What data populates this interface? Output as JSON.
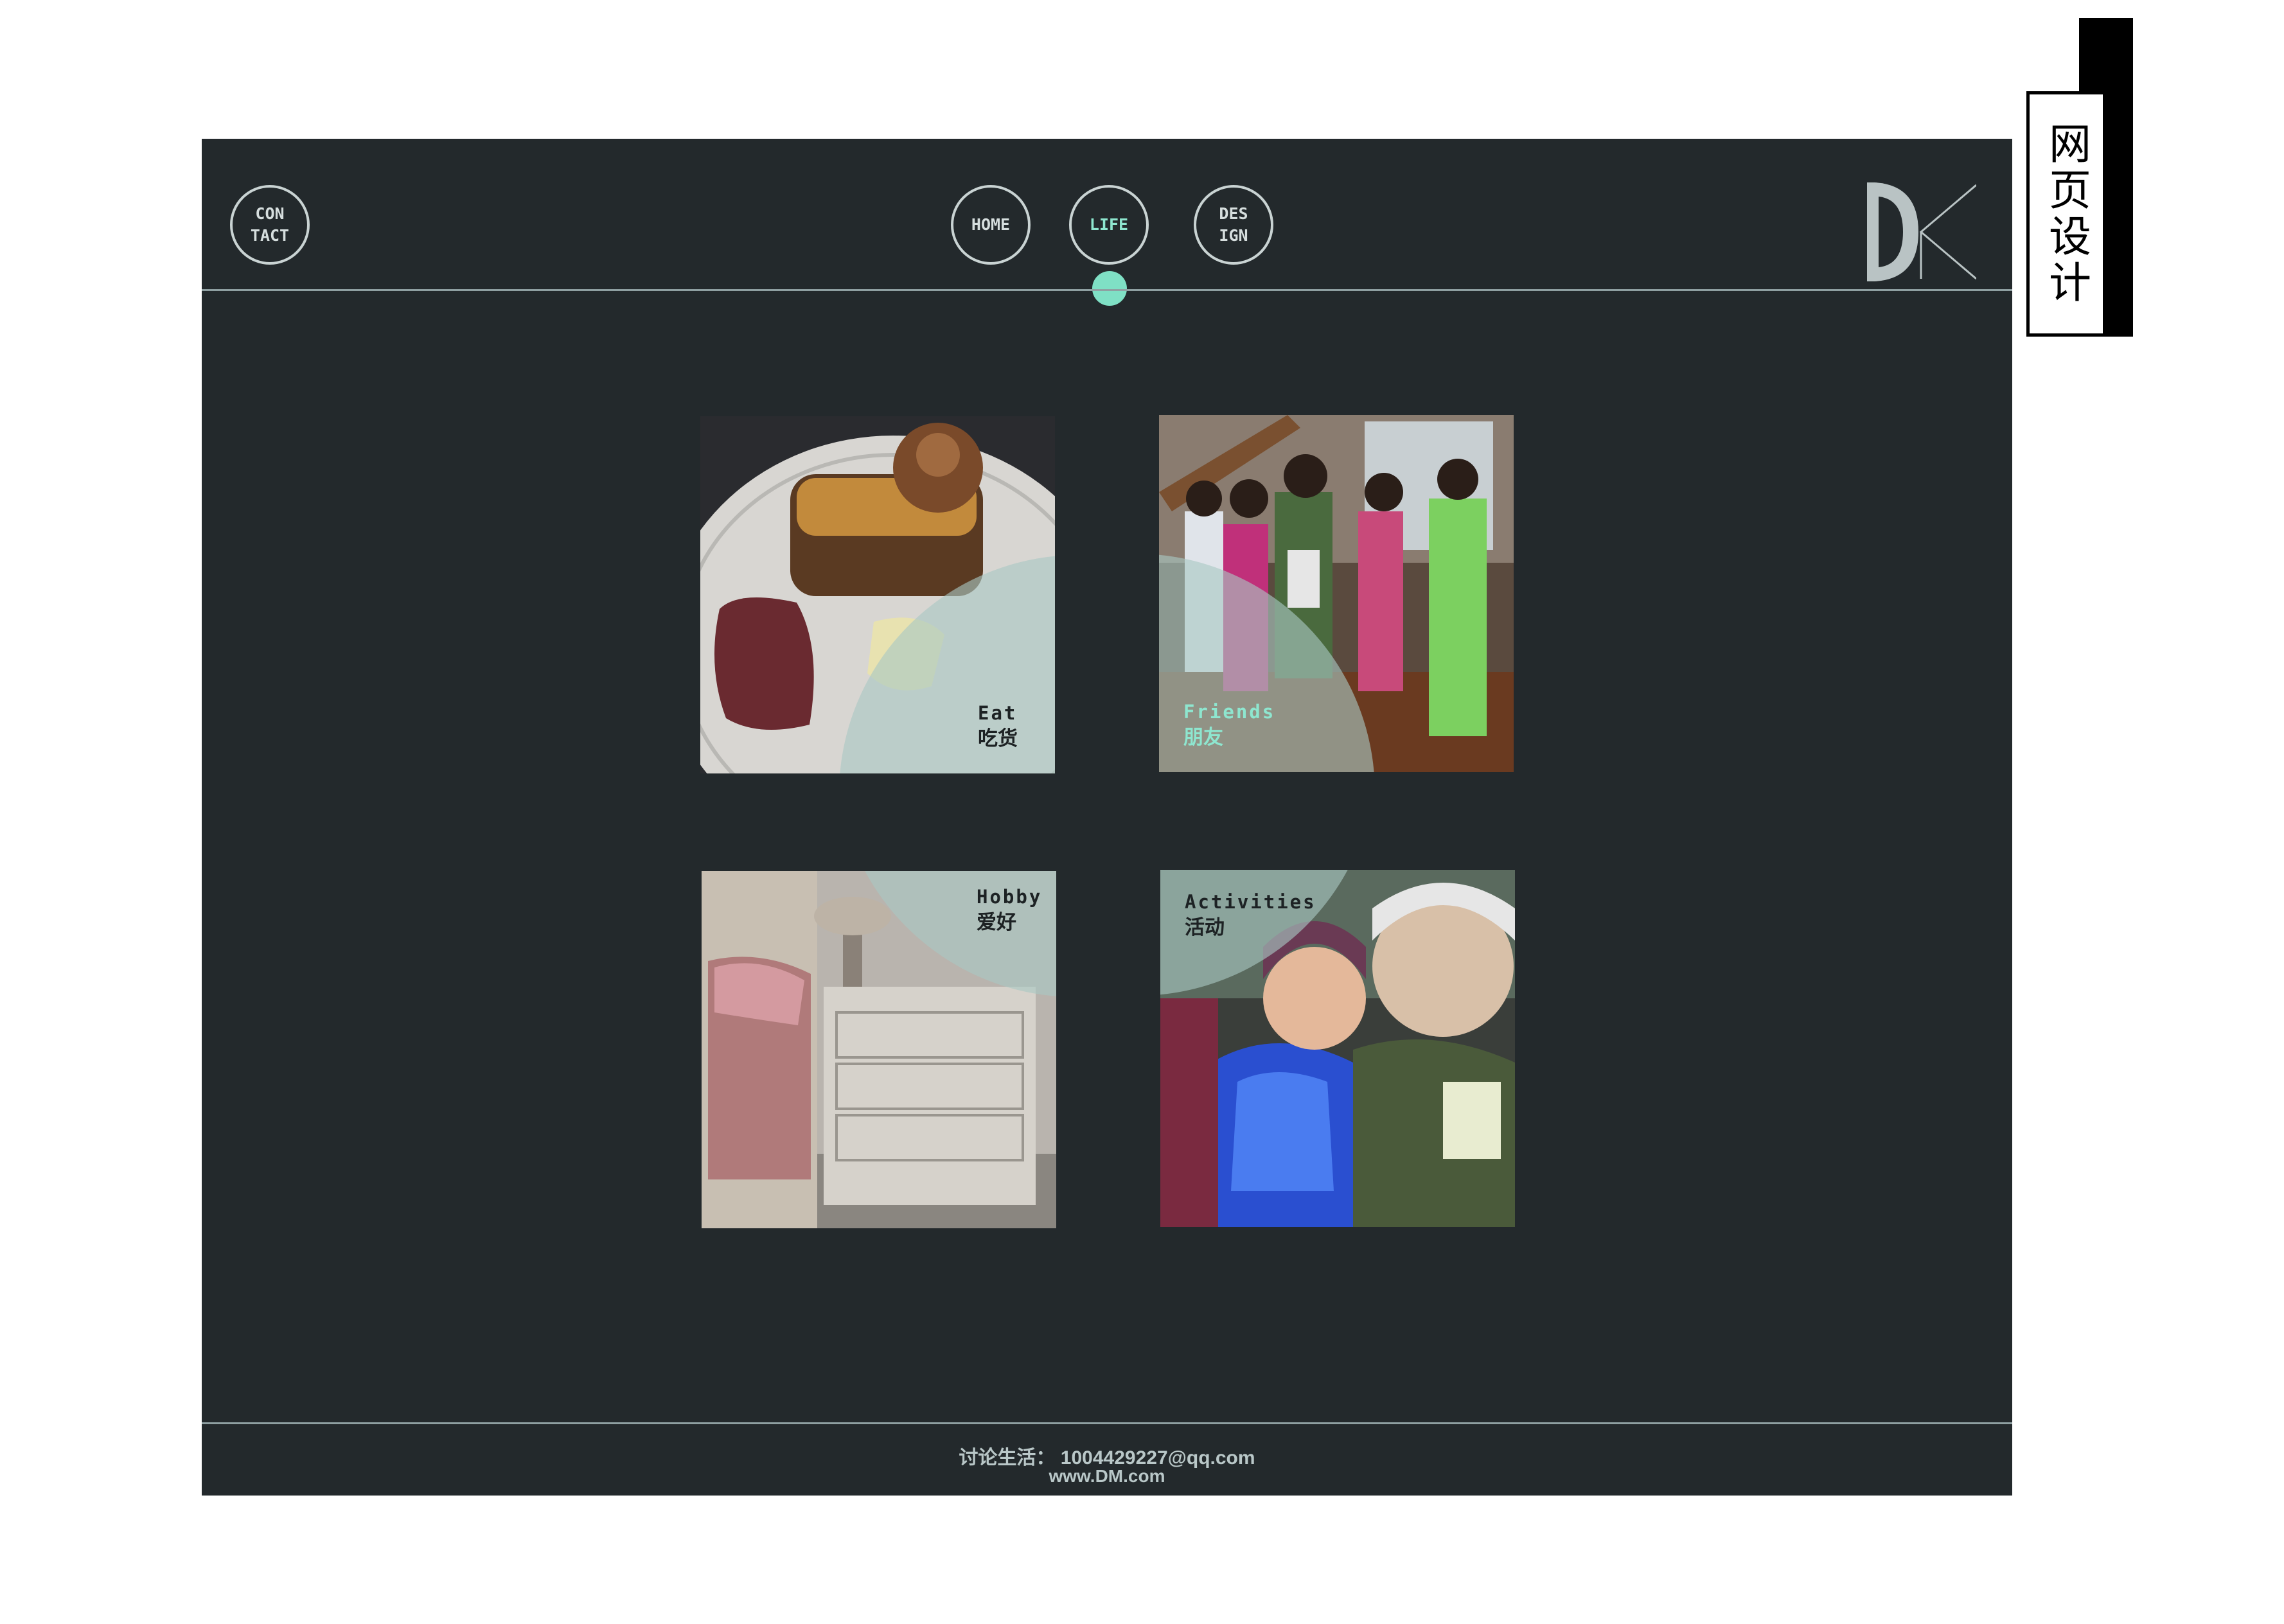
{
  "side_label": "网页设计",
  "nav": {
    "contact": "CON\nTACT",
    "home": "HOME",
    "life": "LIFE",
    "design": "DES\nIGN",
    "active": "LIFE"
  },
  "tiles": [
    {
      "en": "Eat",
      "cn": "吃货"
    },
    {
      "en": "Friends",
      "cn": "朋友"
    },
    {
      "en": "Hobby",
      "cn": "爱好"
    },
    {
      "en": "Activities",
      "cn": "活动"
    }
  ],
  "footer": {
    "contact_label": "讨论生活：",
    "email": "1004429227@qq.com",
    "website": "www.DM.com"
  },
  "colors": {
    "background": "#23292c",
    "accent": "#8ee6cf",
    "overlay": "#aac8c4"
  }
}
